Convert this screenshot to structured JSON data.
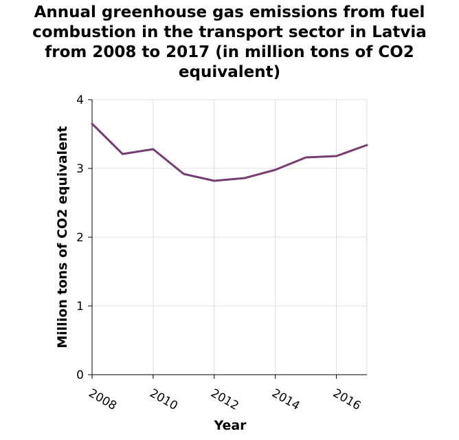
{
  "chart_data": {
    "type": "line",
    "title_lines": [
      "Annual greenhouse gas emissions from fuel",
      "combustion in the transport sector in Latvia",
      "from 2008 to 2017 (in million tons of CO2",
      "equivalent)"
    ],
    "xlabel": "Year",
    "ylabel": "Million tons of CO2 equivalent",
    "xlim": [
      2008,
      2017
    ],
    "ylim": [
      0,
      4
    ],
    "x_ticks": [
      2008,
      2010,
      2012,
      2014,
      2016
    ],
    "y_ticks": [
      0,
      1,
      2,
      3,
      4
    ],
    "grid": true,
    "series": [
      {
        "color": "#773c6f",
        "x": [
          2008,
          2009,
          2010,
          2011,
          2012,
          2013,
          2014,
          2015,
          2016,
          2017
        ],
        "y": [
          3.65,
          3.21,
          3.28,
          2.92,
          2.82,
          2.86,
          2.98,
          3.16,
          3.18,
          3.34
        ]
      }
    ]
  }
}
